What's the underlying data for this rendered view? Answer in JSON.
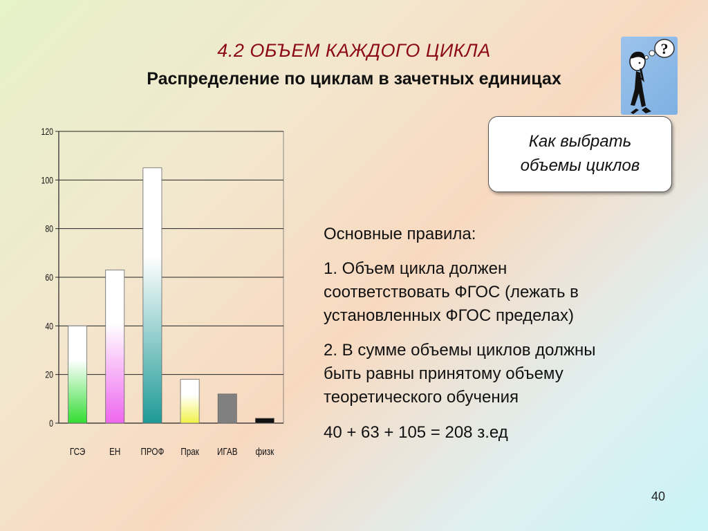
{
  "header": {
    "title": "4.2   ОБЪЕМ   КАЖДОГО  ЦИКЛА",
    "subtitle": "Распределение по циклам в зачетных единицах"
  },
  "thinker": {
    "icon": "thinking-person-icon",
    "symbol": "?"
  },
  "callout": {
    "text": "Как выбрать\nобъемы циклов"
  },
  "rules": {
    "heading": "Основные правила:",
    "rule1": "1. Объем цикла должен\nсоответствовать ФГОС (лежать в\nустановленных ФГОС пределах)",
    "rule2": " 2. В сумме объемы циклов должны\nбыть равны принятому  объему\nтеоретического обучения",
    "formula": "40 + 63 + 105 = 208 з.ед"
  },
  "page_number": "40",
  "chart_data": {
    "type": "bar",
    "categories": [
      "ГСЭ",
      "ЕН",
      "ПРОФ",
      "Прак",
      "ИГАВ",
      "физк"
    ],
    "values": [
      40,
      63,
      105,
      18,
      12,
      2
    ],
    "ylim": [
      0,
      120
    ],
    "yticks": [
      "0",
      "20",
      "40",
      "60",
      "80",
      "100",
      "120"
    ],
    "grid": true,
    "colors": [
      "#33dd33",
      "#ee66ee",
      "#1e9a96",
      "#f2f24a",
      "#808080",
      "#111111"
    ]
  }
}
